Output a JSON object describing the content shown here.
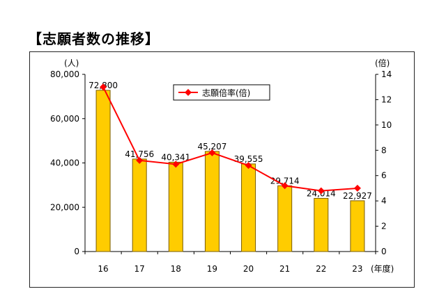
{
  "page": {
    "title": "【志願者数の推移】"
  },
  "chart_data": {
    "type": "bar",
    "title": "",
    "categories": [
      "16",
      "17",
      "18",
      "19",
      "20",
      "21",
      "22",
      "23"
    ],
    "x_unit": "(年度)",
    "series": [
      {
        "name": "",
        "kind": "bar",
        "axis": "left",
        "unit": "(人)",
        "values": [
          72800,
          41756,
          40341,
          45207,
          39555,
          29714,
          24014,
          22927
        ],
        "labels": [
          "72,800",
          "41,756",
          "40,341",
          "45,207",
          "39,555",
          "29,714",
          "24,014",
          "22,927"
        ],
        "color": "#FFCC00",
        "edge_color": "#7A5C00"
      },
      {
        "name": "志願倍率(倍)",
        "kind": "line",
        "axis": "right",
        "unit": "(倍)",
        "values": [
          13.0,
          7.2,
          6.9,
          7.8,
          6.8,
          5.2,
          4.8,
          5.0
        ],
        "color": "#FF0000"
      }
    ],
    "y_left": {
      "range": [
        0,
        80000
      ],
      "ticks": [
        "0",
        "20,000",
        "40,000",
        "60,000",
        "80,000"
      ]
    },
    "y_right": {
      "range": [
        0,
        14
      ],
      "ticks": [
        "0",
        "2",
        "4",
        "6",
        "8",
        "10",
        "12",
        "14"
      ]
    },
    "grid": false,
    "legend": "top-center"
  }
}
